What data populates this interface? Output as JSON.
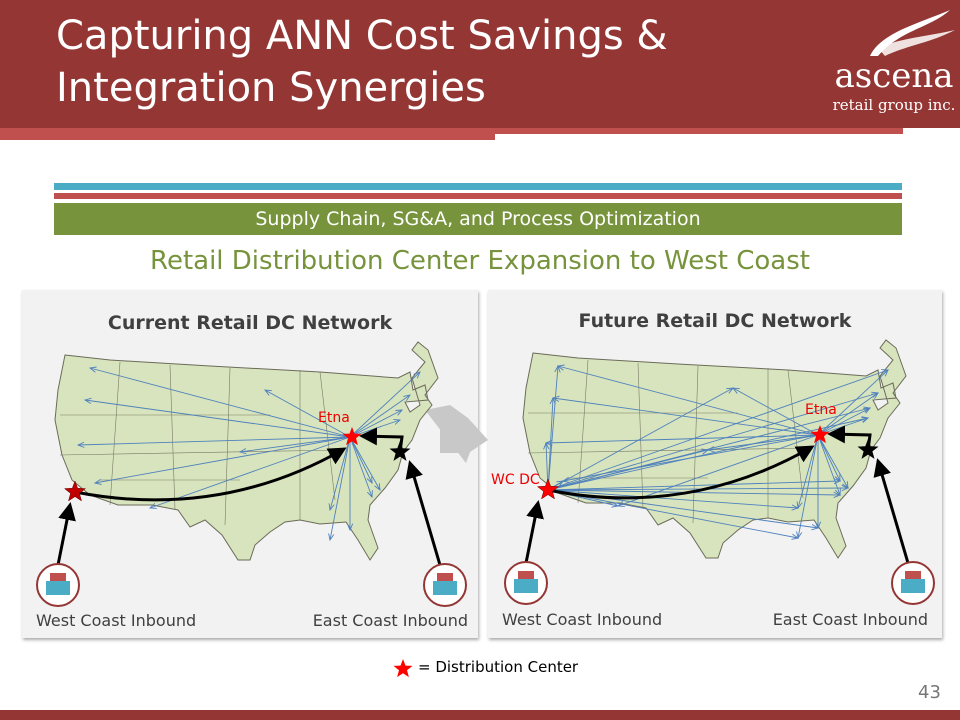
{
  "header": {
    "title_line1": "Capturing ANN Cost Savings &",
    "title_line2": "Integration Synergies",
    "logo_name": "ascena",
    "logo_tagline": "retail group inc."
  },
  "section_band": "Supply Chain, SG&A, and Process Optimization",
  "subtitle": "Retail Distribution Center Expansion to West Coast",
  "current": {
    "title": "Current Retail DC Network",
    "dc_label": "Etna",
    "west_label": "West Coast Inbound",
    "east_label": "East Coast Inbound"
  },
  "future": {
    "title": "Future Retail DC Network",
    "dc_label": "Etna",
    "wc_label": "WC DC",
    "west_label": "West Coast Inbound",
    "east_label": "East Coast Inbound"
  },
  "legend": {
    "text": "= Distribution Center"
  },
  "page_number": "43",
  "colors": {
    "header": "#943634",
    "accent_red": "#c0504d",
    "teal": "#4bacc6",
    "green": "#77933c",
    "map_fill": "#d7e4bd",
    "route": "#4f81bd",
    "dc_star": "#ff0000"
  }
}
